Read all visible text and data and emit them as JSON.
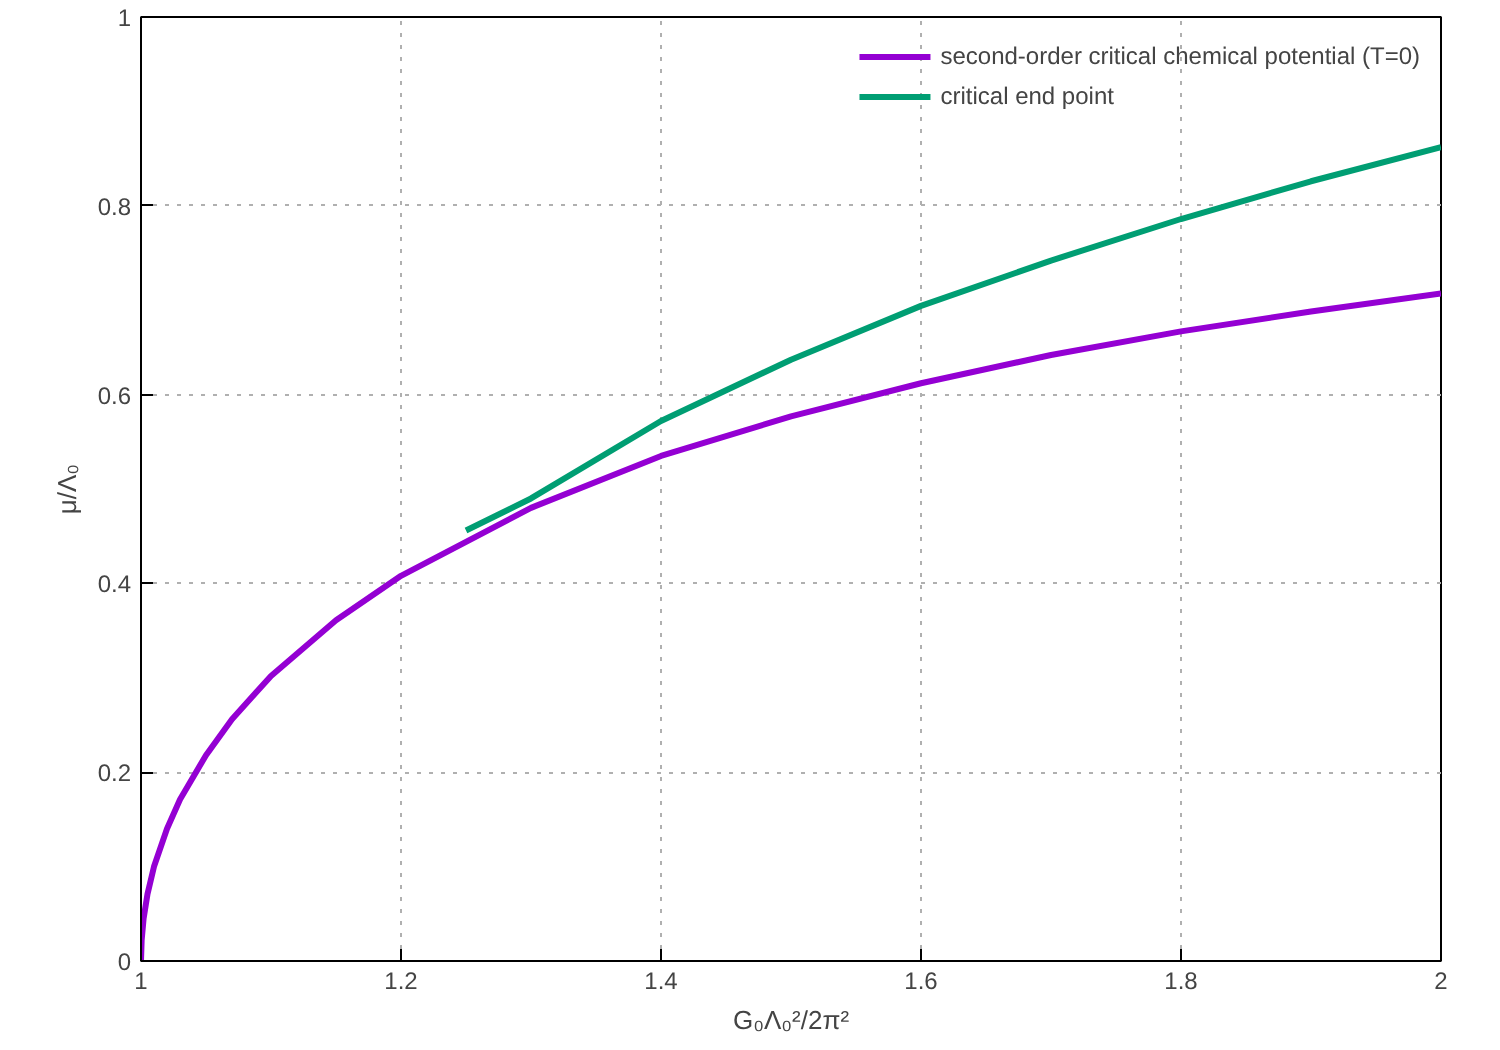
{
  "chart_data": {
    "type": "line",
    "xlabel": "G₀Λ₀²/2π²",
    "ylabel": "μ/Λ₀",
    "xlim": [
      1,
      2
    ],
    "ylim": [
      0,
      1
    ],
    "xticks": [
      1,
      1.2,
      1.4,
      1.6,
      1.8,
      2
    ],
    "yticks": [
      0,
      0.2,
      0.4,
      0.6,
      0.8,
      1
    ],
    "grid": true,
    "legend": "top right",
    "line_style": "solid",
    "series": [
      {
        "name": "second-order critical chemical potential (T=0)",
        "color": "#9400d3",
        "x": [
          1,
          1.0005,
          1.002,
          1.005,
          1.01,
          1.02,
          1.03,
          1.05,
          1.07,
          1.1,
          1.15,
          1.2,
          1.3,
          1.4,
          1.5,
          1.6,
          1.7,
          1.8,
          1.9,
          2
        ],
        "values": [
          0,
          0.022,
          0.045,
          0.071,
          0.1,
          0.14,
          0.171,
          0.218,
          0.256,
          0.302,
          0.361,
          0.408,
          0.48,
          0.535,
          0.577,
          0.612,
          0.642,
          0.667,
          0.688,
          0.707
        ]
      },
      {
        "name": "critical end point",
        "color": "#009e73",
        "x": [
          1.25,
          1.3,
          1.4,
          1.5,
          1.6,
          1.7,
          1.8,
          1.9,
          2
        ],
        "values": [
          0.456,
          0.49,
          0.572,
          0.637,
          0.694,
          0.742,
          0.786,
          0.826,
          0.862
        ]
      }
    ]
  }
}
